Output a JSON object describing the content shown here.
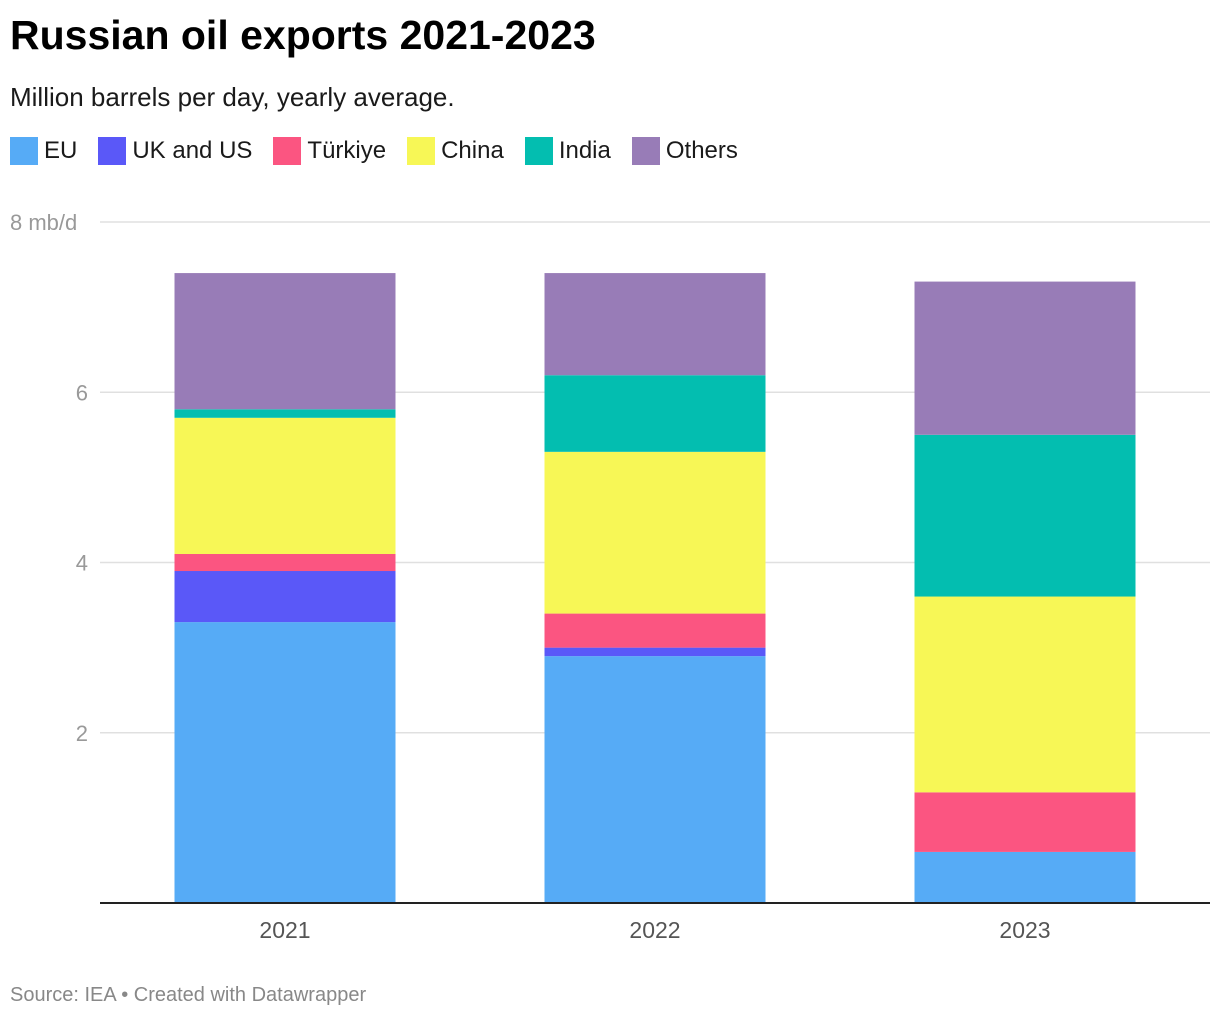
{
  "header": {
    "title": "Russian oil exports 2021-2023",
    "subtitle": "Million barrels per day, yearly average."
  },
  "footer": {
    "source": "Source: IEA",
    "separator": "•",
    "credit": "Created with Datawrapper"
  },
  "chart_data": {
    "type": "bar",
    "stacked": true,
    "title": "Russian oil exports 2021-2023",
    "subtitle": "Million barrels per day, yearly average.",
    "xlabel": "",
    "ylabel": "",
    "unit": "mb/d",
    "ylim": [
      0,
      8
    ],
    "yticks": [
      2,
      4,
      6,
      8
    ],
    "ytick_labels": [
      "2",
      "4",
      "6",
      "8 mb/d"
    ],
    "grid": true,
    "legend_position": "top-left",
    "categories": [
      "2021",
      "2022",
      "2023"
    ],
    "series": [
      {
        "name": "EU",
        "color": "#56abf6",
        "values": [
          3.3,
          2.9,
          0.6
        ]
      },
      {
        "name": "UK and US",
        "color": "#5a58f8",
        "values": [
          0.6,
          0.1,
          0.0
        ]
      },
      {
        "name": "Türkiye",
        "color": "#fb5581",
        "values": [
          0.2,
          0.4,
          0.7
        ]
      },
      {
        "name": "China",
        "color": "#f7f756",
        "values": [
          1.6,
          1.9,
          2.3
        ]
      },
      {
        "name": "India",
        "color": "#03beb0",
        "values": [
          0.1,
          0.9,
          1.9
        ]
      },
      {
        "name": "Others",
        "color": "#987cb7",
        "values": [
          1.6,
          1.2,
          1.8
        ]
      }
    ]
  }
}
